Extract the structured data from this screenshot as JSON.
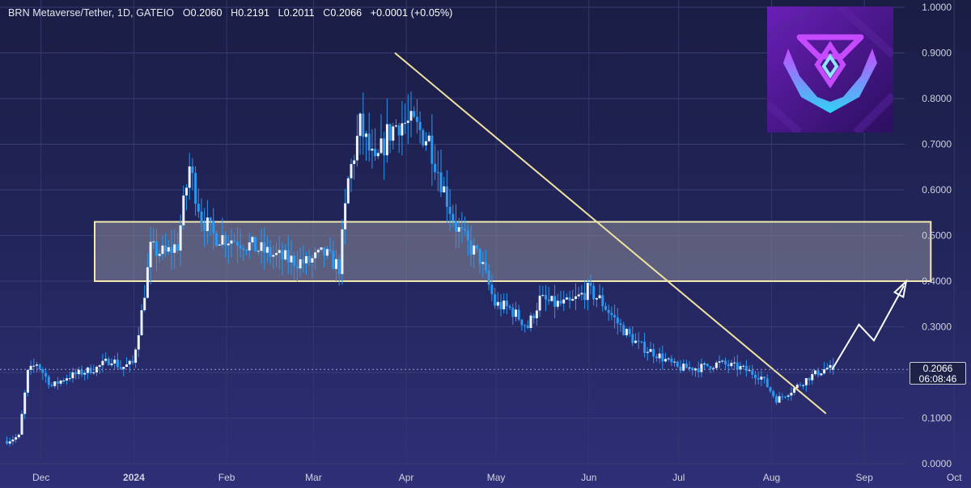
{
  "header": {
    "symbol": "BRN Metaverse/Tether, 1D, GATEIO",
    "open_label": "O",
    "open": "0.2060",
    "high_label": "H",
    "high": "0.2191",
    "low_label": "L",
    "low": "0.2011",
    "close_label": "C",
    "close": "0.2066",
    "change": "+0.0001 (+0.05%)"
  },
  "last_price": {
    "price": "0.2066",
    "countdown": "06:08:46"
  },
  "logo": {
    "name": "brn-logo-icon"
  },
  "colors": {
    "candles": "#2a97f0",
    "trendline": "#f0e3a0",
    "zone_border": "#f3e9b0",
    "zone_fill": "#8d8c9b",
    "projection": "#ffffff",
    "background_top": "#1a1d44",
    "background_bottom": "#2f2f78"
  },
  "chart_data": {
    "type": "candlestick",
    "title": "",
    "y_axis": {
      "ticks": [
        "1.0000",
        "0.9000",
        "0.8000",
        "0.7000",
        "0.6000",
        "0.5000",
        "0.4000",
        "0.3000",
        "0.2000",
        "0.1000",
        "0.0000"
      ],
      "range": [
        0,
        1.0
      ]
    },
    "x_axis": {
      "ticks": [
        "Dec",
        "2024",
        "Feb",
        "Mar",
        "Apr",
        "May",
        "Jun",
        "Jul",
        "Aug",
        "Sep",
        "Oct"
      ],
      "range": [
        "2023-11-20",
        "2024-10-06"
      ]
    },
    "grid": true,
    "resistance_zone": {
      "low": 0.4,
      "high": 0.53,
      "from": "2023-11-20",
      "to": "2024-09-24"
    },
    "trendline": {
      "start": {
        "date": "2024-03-29",
        "price": 0.9
      },
      "end": {
        "date": "2024-08-20",
        "price": 0.11
      }
    },
    "projection_path": [
      {
        "date": "2024-08-22",
        "price": 0.206
      },
      {
        "date": "2024-08-31",
        "price": 0.305
      },
      {
        "date": "2024-09-05",
        "price": 0.27
      },
      {
        "date": "2024-09-15",
        "price": 0.39
      }
    ],
    "current_price": 0.2066,
    "price_path": [
      [
        "2023-11-20",
        0.05
      ],
      [
        "2023-11-24",
        0.06
      ],
      [
        "2023-11-27",
        0.2
      ],
      [
        "2023-11-30",
        0.22
      ],
      [
        "2023-12-05",
        0.17
      ],
      [
        "2023-12-10",
        0.19
      ],
      [
        "2023-12-15",
        0.2
      ],
      [
        "2023-12-20",
        0.21
      ],
      [
        "2023-12-25",
        0.23
      ],
      [
        "2023-12-28",
        0.21
      ],
      [
        "2024-01-01",
        0.22
      ],
      [
        "2024-01-04",
        0.33
      ],
      [
        "2024-01-07",
        0.47
      ],
      [
        "2024-01-12",
        0.46
      ],
      [
        "2024-01-16",
        0.48
      ],
      [
        "2024-01-20",
        0.65
      ],
      [
        "2024-01-24",
        0.54
      ],
      [
        "2024-01-28",
        0.5
      ],
      [
        "2024-02-05",
        0.49
      ],
      [
        "2024-02-12",
        0.47
      ],
      [
        "2024-02-20",
        0.45
      ],
      [
        "2024-02-28",
        0.44
      ],
      [
        "2024-03-05",
        0.46
      ],
      [
        "2024-03-10",
        0.43
      ],
      [
        "2024-03-13",
        0.62
      ],
      [
        "2024-03-17",
        0.74
      ],
      [
        "2024-03-22",
        0.65
      ],
      [
        "2024-03-26",
        0.72
      ],
      [
        "2024-03-30",
        0.75
      ],
      [
        "2024-04-04",
        0.74
      ],
      [
        "2024-04-09",
        0.71
      ],
      [
        "2024-04-14",
        0.6
      ],
      [
        "2024-04-18",
        0.52
      ],
      [
        "2024-04-22",
        0.48
      ],
      [
        "2024-04-26",
        0.45
      ],
      [
        "2024-05-01",
        0.35
      ],
      [
        "2024-05-06",
        0.34
      ],
      [
        "2024-05-12",
        0.3
      ],
      [
        "2024-05-16",
        0.36
      ],
      [
        "2024-05-21",
        0.35
      ],
      [
        "2024-05-26",
        0.35
      ],
      [
        "2024-06-01",
        0.38
      ],
      [
        "2024-06-05",
        0.36
      ],
      [
        "2024-06-12",
        0.3
      ],
      [
        "2024-06-18",
        0.26
      ],
      [
        "2024-06-24",
        0.24
      ],
      [
        "2024-07-01",
        0.21
      ],
      [
        "2024-07-08",
        0.21
      ],
      [
        "2024-07-15",
        0.22
      ],
      [
        "2024-07-22",
        0.21
      ],
      [
        "2024-07-29",
        0.19
      ],
      [
        "2024-08-03",
        0.14
      ],
      [
        "2024-08-08",
        0.16
      ],
      [
        "2024-08-14",
        0.19
      ],
      [
        "2024-08-20",
        0.21
      ],
      [
        "2024-08-22",
        0.2066
      ]
    ]
  }
}
